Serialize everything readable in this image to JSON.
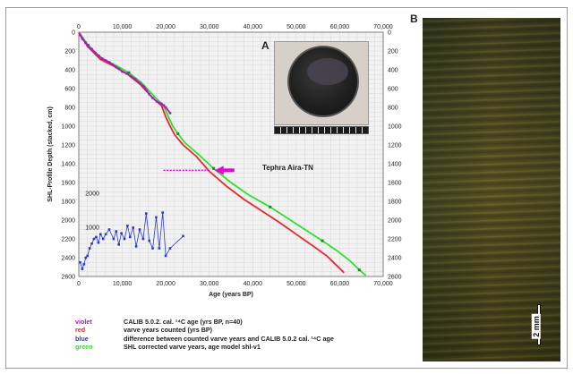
{
  "chart_data": {
    "type": "line",
    "title": "",
    "xlabel": "Age (years BP)",
    "ylabel": "SHL-Profile Depth (stacked, cm)",
    "xlim": [
      0,
      70000
    ],
    "ylim": [
      0,
      2600
    ],
    "y_inverted": true,
    "grid": true,
    "x_ticks": [
      "0",
      "10,000",
      "20,000",
      "30,000",
      "40,000",
      "50,000",
      "60,000",
      "70,000"
    ],
    "y_ticks": [
      "0",
      "200",
      "400",
      "600",
      "800",
      "1000",
      "1200",
      "1400",
      "1600",
      "1800",
      "2000",
      "2200",
      "2400",
      "2600"
    ],
    "series": [
      {
        "key": "violet",
        "color": "#a020c0",
        "label": "CALIB 5.0.2. cal. ¹⁴C age (yrs BP, n=40)",
        "points": [
          [
            300,
            30
          ],
          [
            800,
            70
          ],
          [
            1500,
            110
          ],
          [
            2200,
            150
          ],
          [
            3000,
            180
          ],
          [
            3800,
            220
          ],
          [
            4600,
            250
          ],
          [
            5400,
            280
          ],
          [
            6200,
            300
          ],
          [
            7000,
            320
          ],
          [
            7800,
            345
          ],
          [
            8500,
            370
          ],
          [
            9200,
            390
          ],
          [
            10000,
            420
          ],
          [
            11000,
            440
          ],
          [
            12000,
            470
          ],
          [
            13000,
            500
          ],
          [
            14000,
            540
          ],
          [
            15000,
            580
          ],
          [
            15600,
            620
          ],
          [
            16200,
            660
          ],
          [
            17000,
            700
          ],
          [
            18000,
            740
          ],
          [
            19000,
            760
          ],
          [
            20000,
            800
          ],
          [
            21000,
            860
          ]
        ]
      },
      {
        "key": "red",
        "color": "#e8282a",
        "label": "varve years counted (yrs BP)",
        "points": [
          [
            0,
            0
          ],
          [
            2000,
            150
          ],
          [
            5000,
            290
          ],
          [
            8000,
            360
          ],
          [
            11000,
            440
          ],
          [
            14000,
            550
          ],
          [
            17000,
            700
          ],
          [
            19000,
            780
          ],
          [
            20000,
            900
          ],
          [
            21000,
            1000
          ],
          [
            22000,
            1090
          ],
          [
            24000,
            1200
          ],
          [
            27000,
            1320
          ],
          [
            30000,
            1480
          ],
          [
            34000,
            1640
          ],
          [
            38000,
            1780
          ],
          [
            42000,
            1900
          ],
          [
            46000,
            2020
          ],
          [
            50000,
            2150
          ],
          [
            54000,
            2280
          ],
          [
            57000,
            2380
          ],
          [
            59000,
            2470
          ],
          [
            61000,
            2560
          ]
        ]
      },
      {
        "key": "green",
        "color": "#2ee02e",
        "label": "SHL corrected varve years, age model shl-v1",
        "points": [
          [
            0,
            0
          ],
          [
            2200,
            140
          ],
          [
            5200,
            280
          ],
          [
            8400,
            350
          ],
          [
            11500,
            430
          ],
          [
            14500,
            540
          ],
          [
            17500,
            690
          ],
          [
            19500,
            780
          ],
          [
            20600,
            900
          ],
          [
            21600,
            1000
          ],
          [
            22800,
            1080
          ],
          [
            24500,
            1180
          ],
          [
            27500,
            1300
          ],
          [
            31000,
            1450
          ],
          [
            35000,
            1600
          ],
          [
            39000,
            1730
          ],
          [
            44000,
            1860
          ],
          [
            48000,
            1980
          ],
          [
            52000,
            2100
          ],
          [
            56000,
            2220
          ],
          [
            59500,
            2330
          ],
          [
            62500,
            2440
          ],
          [
            64500,
            2530
          ],
          [
            66000,
            2590
          ]
        ]
      },
      {
        "key": "blue",
        "color": "#2a3ad0",
        "label": "difference between counted varve years and CALIB 5.0.2 cal. ¹⁴C age",
        "points": [
          [
            300,
            2450
          ],
          [
            800,
            2520
          ],
          [
            1200,
            2470
          ],
          [
            1600,
            2400
          ],
          [
            2000,
            2380
          ],
          [
            2500,
            2300
          ],
          [
            3000,
            2250
          ],
          [
            3500,
            2200
          ],
          [
            4000,
            2180
          ],
          [
            4500,
            2240
          ],
          [
            5000,
            2150
          ],
          [
            5600,
            2200
          ],
          [
            6200,
            2150
          ],
          [
            7000,
            2100
          ],
          [
            8000,
            2200
          ],
          [
            8600,
            2120
          ],
          [
            9200,
            2260
          ],
          [
            9800,
            2140
          ],
          [
            10500,
            2200
          ],
          [
            11200,
            2060
          ],
          [
            11800,
            2180
          ],
          [
            12500,
            2080
          ],
          [
            13200,
            2280
          ],
          [
            14000,
            2100
          ],
          [
            14800,
            2200
          ],
          [
            15500,
            1930
          ],
          [
            16200,
            2220
          ],
          [
            17000,
            2300
          ],
          [
            17800,
            1970
          ],
          [
            18500,
            2300
          ],
          [
            19300,
            1920
          ],
          [
            20000,
            2380
          ],
          [
            21000,
            2300
          ],
          [
            24000,
            2170
          ]
        ]
      }
    ],
    "scale_labels": [
      {
        "text": "2000",
        "x": 1500,
        "y": 1740
      },
      {
        "text": "1000",
        "x": 1500,
        "y": 2100
      }
    ],
    "tephra": {
      "label": "Tephra Aira-TN",
      "depth": 1470,
      "x_start": 19500,
      "x_end": 30000,
      "color": "#e000e0"
    }
  },
  "panels": {
    "a": "A",
    "b": "B"
  },
  "legend": [
    {
      "key": "violet",
      "text": "CALIB 5.0.2.  cal. ¹⁴C age (yrs BP, n=40)",
      "color": "#a020c0"
    },
    {
      "key": "red",
      "text": "varve years counted (yrs BP)",
      "color": "#e8282a"
    },
    {
      "key": "blue",
      "text": "difference between counted varve years and CALIB 5.0.2 cal. ¹⁴C age",
      "color": "#2a3ad0"
    },
    {
      "key": "green",
      "text": "SHL corrected varve years, age model shl-v1",
      "color": "#2ee02e"
    }
  ],
  "scale_bar": {
    "label": "2 mm"
  }
}
